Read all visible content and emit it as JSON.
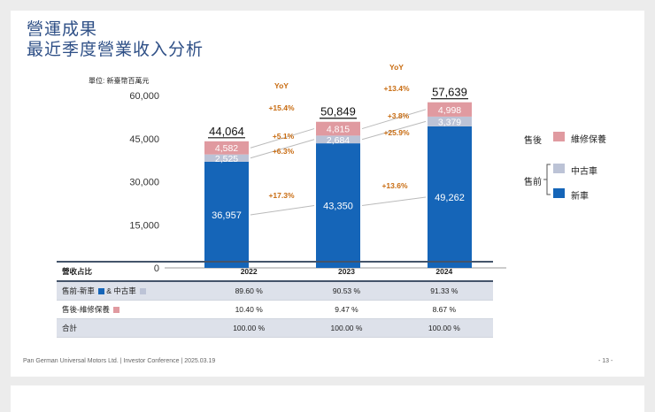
{
  "title": {
    "line1": "營運成果",
    "line2": "最近季度營業收入分析"
  },
  "unit_label": "單位: 新臺幣百萬元",
  "colors": {
    "new_car": "#1565b8",
    "used_car": "#bcc3d6",
    "after_sales": "#e09aa0",
    "yoy_text": "#c86b10",
    "title": "#2e4f86"
  },
  "chart_data": {
    "type": "bar",
    "stacked": true,
    "categories": [
      "2022",
      "2023",
      "2024"
    ],
    "series": [
      {
        "name": "新車",
        "values": [
          36957,
          43350,
          49262
        ],
        "labels": [
          "36,957",
          "43,350",
          "49,262"
        ]
      },
      {
        "name": "中古車",
        "values": [
          2525,
          2684,
          3379
        ],
        "labels": [
          "2,525",
          "2,684",
          "3,379"
        ]
      },
      {
        "name": "維修保養",
        "values": [
          4582,
          4815,
          4998
        ],
        "labels": [
          "4,582",
          "4,815",
          "4,998"
        ]
      }
    ],
    "totals": [
      44064,
      50849,
      57639
    ],
    "total_labels": [
      "44,064",
      "50,849",
      "57,639"
    ],
    "ylim": [
      0,
      60000
    ],
    "yticks": [
      0,
      15000,
      30000,
      45000,
      60000
    ],
    "ytick_labels": [
      "0",
      "15,000",
      "30,000",
      "45,000",
      "60,000"
    ],
    "yoy_header": "YoY",
    "yoy_2023": {
      "total": "+15.4%",
      "after_sales": "+5.1%",
      "used_car": "+6.3%",
      "new_car": "+17.3%"
    },
    "yoy_2024": {
      "total": "+13.4%",
      "after_sales": "+3.8%",
      "used_car": "+25.9%",
      "new_car": "+13.6%"
    }
  },
  "legend": {
    "after_sales_group": "售後",
    "pre_sales_group": "售前",
    "after_sales": "維修保養",
    "used_car": "中古車",
    "new_car": "新車"
  },
  "table": {
    "header": [
      "營收占比",
      "2022",
      "2023",
      "2024"
    ],
    "rows": [
      {
        "label_a": "售前-新車",
        "label_b": "& 中古車",
        "values": [
          "89.60 %",
          "90.53 %",
          "91.33 %"
        ]
      },
      {
        "label_a": "售後-維修保養",
        "label_b": "",
        "values": [
          "10.40 %",
          "9.47 %",
          "8.67 %"
        ]
      },
      {
        "label_a": "合計",
        "label_b": "",
        "values": [
          "100.00 %",
          "100.00 %",
          "100.00 %"
        ]
      }
    ]
  },
  "footer": "Pan German Universal Motors Ltd. | Investor Conference | 2025.03.19",
  "page_number": "- 13 -"
}
